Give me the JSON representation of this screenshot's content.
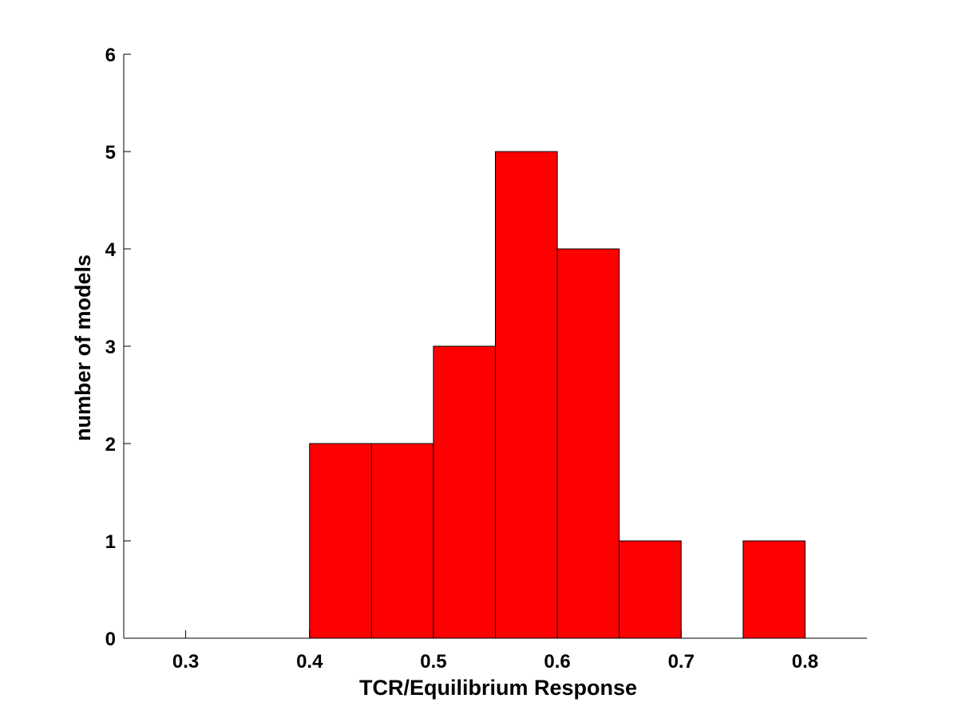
{
  "chart_data": {
    "type": "bar",
    "title": "",
    "xlabel": "TCR/Equilibrium Response",
    "ylabel": "number of models",
    "xlim": [
      0.25,
      0.85
    ],
    "ylim": [
      0,
      6
    ],
    "x_ticks": [
      "0.3",
      "0.4",
      "0.5",
      "0.6",
      "0.7",
      "0.8"
    ],
    "y_ticks": [
      "0",
      "1",
      "2",
      "3",
      "4",
      "5",
      "6"
    ],
    "bin_width": 0.05,
    "bins": [
      {
        "x0": 0.4,
        "x1": 0.45,
        "value": 2
      },
      {
        "x0": 0.45,
        "x1": 0.5,
        "value": 2
      },
      {
        "x0": 0.5,
        "x1": 0.55,
        "value": 3
      },
      {
        "x0": 0.55,
        "x1": 0.6,
        "value": 5
      },
      {
        "x0": 0.6,
        "x1": 0.65,
        "value": 4
      },
      {
        "x0": 0.65,
        "x1": 0.7,
        "value": 1
      },
      {
        "x0": 0.75,
        "x1": 0.8,
        "value": 1
      }
    ],
    "colors": {
      "bar_fill": "#ff0000",
      "bar_edge": "#000000"
    },
    "grid": false,
    "legend": "none"
  }
}
